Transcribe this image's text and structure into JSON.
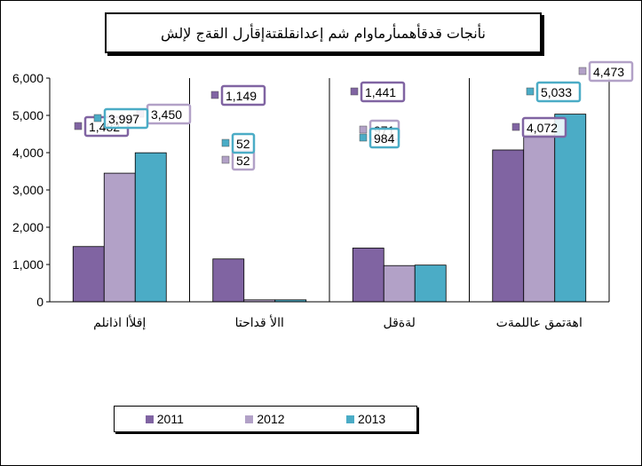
{
  "chart_data": {
    "type": "bar",
    "title": "نأنجات   قدقأهمىأرماوام  شم إعدانقلقتةإقأرل القةج لإلش",
    "categories": [
      "إقلأا اذانلم",
      "االأ قداحتا",
      "لةةقل",
      "اهةتمق عاللمةت"
    ],
    "series": [
      {
        "name": "2011",
        "color": "#8064A2",
        "values": [
          1482,
          1149,
          1441,
          4072
        ]
      },
      {
        "name": "2012",
        "color": "#B2A1C7",
        "values": [
          3450,
          52,
          971,
          4473
        ]
      },
      {
        "name": "2013",
        "color": "#4BACC6",
        "values": [
          3997,
          52,
          984,
          5033
        ]
      }
    ],
    "ylim": [
      0,
      6000
    ],
    "yticks": [
      "0",
      "1,000",
      "2,000",
      "3,000",
      "4,000",
      "5,000",
      "6,000"
    ],
    "data_labels": [
      [
        "1,482",
        "1,149",
        "1,441",
        "4,072"
      ],
      [
        "3,450",
        "52",
        "971",
        "4,473"
      ],
      [
        "3,997",
        "52",
        "984",
        "5,033"
      ]
    ],
    "grid": false,
    "legend_position": "bottom"
  }
}
